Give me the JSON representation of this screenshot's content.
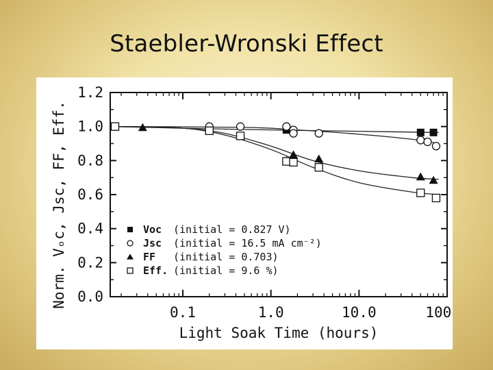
{
  "slide": {
    "title": "Staebler-Wronski Effect"
  },
  "chart_data": {
    "type": "scatter",
    "x_scale": "log",
    "xlabel": "Light Soak Time (hours)",
    "ylabel": "Norm. Vₒc, Jsc, FF, Eff.",
    "xlim": [
      0.015,
      100
    ],
    "ylim": [
      0.0,
      1.2
    ],
    "x_ticks": [
      {
        "value": 0.1,
        "label": "0.1"
      },
      {
        "value": 1,
        "label": "1.0"
      },
      {
        "value": 10,
        "label": "10.0"
      },
      {
        "value": 100,
        "label": "100.0"
      }
    ],
    "y_ticks": [
      {
        "value": 0.0,
        "label": "0.0"
      },
      {
        "value": 0.2,
        "label": "0.2"
      },
      {
        "value": 0.4,
        "label": "0.4"
      },
      {
        "value": 0.6,
        "label": "0.6"
      },
      {
        "value": 0.8,
        "label": "0.8"
      },
      {
        "value": 1.0,
        "label": "1.0"
      },
      {
        "value": 1.2,
        "label": "1.2"
      }
    ],
    "grid": false,
    "legend_position": "bottom-left",
    "series": [
      {
        "name": "Voc",
        "marker": "filled-square",
        "legend_text": "(initial = 0.827 V)",
        "points": [
          [
            0.017,
            1.0
          ],
          [
            0.2,
            0.985
          ],
          [
            1.5,
            0.98
          ],
          [
            50,
            0.965
          ],
          [
            70,
            0.965
          ]
        ],
        "curve": [
          [
            0.017,
            1.0
          ],
          [
            0.1,
            0.99
          ],
          [
            1,
            0.98
          ],
          [
            10,
            0.972
          ],
          [
            80,
            0.965
          ]
        ]
      },
      {
        "name": "Jsc",
        "marker": "open-circle",
        "legend_text": "(initial = 16.5 mA cm⁻²)",
        "points": [
          [
            0.017,
            1.0
          ],
          [
            0.2,
            1.0
          ],
          [
            0.45,
            1.0
          ],
          [
            1.5,
            1.0
          ],
          [
            1.8,
            0.98
          ],
          [
            1.8,
            0.96
          ],
          [
            3.5,
            0.96
          ],
          [
            50,
            0.92
          ],
          [
            60,
            0.91
          ],
          [
            75,
            0.885
          ]
        ],
        "curve": [
          [
            0.017,
            1.0
          ],
          [
            0.5,
            0.995
          ],
          [
            2,
            0.98
          ],
          [
            10,
            0.955
          ],
          [
            40,
            0.925
          ],
          [
            80,
            0.9
          ]
        ]
      },
      {
        "name": "FF",
        "marker": "filled-triangle",
        "legend_text": "(initial = 0.703)",
        "points": [
          [
            0.017,
            1.0
          ],
          [
            0.035,
            0.995
          ],
          [
            0.2,
            0.975
          ],
          [
            0.45,
            0.945
          ],
          [
            1.5,
            0.8
          ],
          [
            1.8,
            0.835
          ],
          [
            3.5,
            0.81
          ],
          [
            50,
            0.705
          ],
          [
            70,
            0.685
          ]
        ],
        "curve": [
          [
            0.017,
            1.0
          ],
          [
            0.1,
            0.99
          ],
          [
            0.3,
            0.96
          ],
          [
            1,
            0.885
          ],
          [
            3,
            0.8
          ],
          [
            10,
            0.74
          ],
          [
            40,
            0.7
          ],
          [
            80,
            0.69
          ]
        ]
      },
      {
        "name": "Eff.",
        "marker": "open-square",
        "legend_text": "(initial = 9.6 %)",
        "points": [
          [
            0.017,
            1.0
          ],
          [
            0.2,
            0.975
          ],
          [
            0.45,
            0.945
          ],
          [
            1.5,
            0.795
          ],
          [
            1.8,
            0.79
          ],
          [
            3.5,
            0.76
          ],
          [
            50,
            0.61
          ],
          [
            75,
            0.58
          ]
        ],
        "curve": [
          [
            0.017,
            1.0
          ],
          [
            0.1,
            0.99
          ],
          [
            0.3,
            0.95
          ],
          [
            1,
            0.865
          ],
          [
            3,
            0.76
          ],
          [
            10,
            0.67
          ],
          [
            40,
            0.615
          ],
          [
            80,
            0.6
          ]
        ]
      }
    ]
  }
}
